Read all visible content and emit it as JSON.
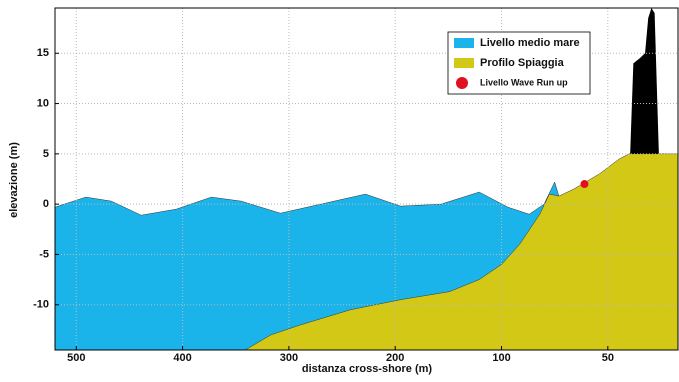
{
  "chart_data": {
    "type": "profile",
    "xlabel": "distanza cross-shore (m)",
    "ylabel": "elevazione (m)",
    "xlim": [
      520,
      17
    ],
    "ylim": [
      -14.5,
      19.5
    ],
    "xticks": [
      500,
      400,
      300,
      200,
      100,
      50
    ],
    "yticks": [
      -10,
      -5,
      0,
      5,
      10,
      15
    ],
    "grid": true,
    "legend": "upper right",
    "series": [
      {
        "name": "Livello medio mare",
        "color": "#1ab4ea",
        "style": "area",
        "x": [
          520,
          491,
          467,
          439,
          406,
          373,
          345,
          308,
          270,
          228,
          195,
          157,
          121,
          97,
          87,
          80,
          75,
          73,
          70,
          68,
          66
        ],
        "values": [
          -0.3,
          0.7,
          0.3,
          -1.1,
          -0.5,
          0.7,
          0.3,
          -0.9,
          0,
          1.0,
          -0.2,
          0,
          1.2,
          -0.3,
          -1,
          0,
          2.2,
          0.8,
          -0.5,
          0.5,
          1.2
        ]
      },
      {
        "name": "Profilo Spiaggia",
        "color": "#d4c816",
        "style": "area",
        "x": [
          341,
          317,
          289,
          242,
          195,
          149,
          121,
          100,
          91.5,
          82,
          77.5,
          73,
          66,
          54,
          44.6,
          40,
          26,
          17
        ],
        "values": [
          -14.5,
          -13,
          -12,
          -10.5,
          -9.5,
          -8.7,
          -7.5,
          -6,
          -4,
          -1,
          1,
          0.8,
          1.5,
          3,
          4.5,
          5,
          5,
          5
        ]
      },
      {
        "color": "#000000",
        "style": "polygon",
        "x": [
          39.5,
          38,
          35,
          32.5,
          31,
          29.5,
          28,
          27,
          26
        ],
        "values": [
          5,
          14,
          14.5,
          15,
          18.5,
          19.5,
          19,
          12,
          5
        ]
      },
      {
        "name": "Livello Wave Run up",
        "color": "#e01020",
        "style": "point",
        "x": [
          61
        ],
        "values": [
          2
        ]
      }
    ]
  }
}
